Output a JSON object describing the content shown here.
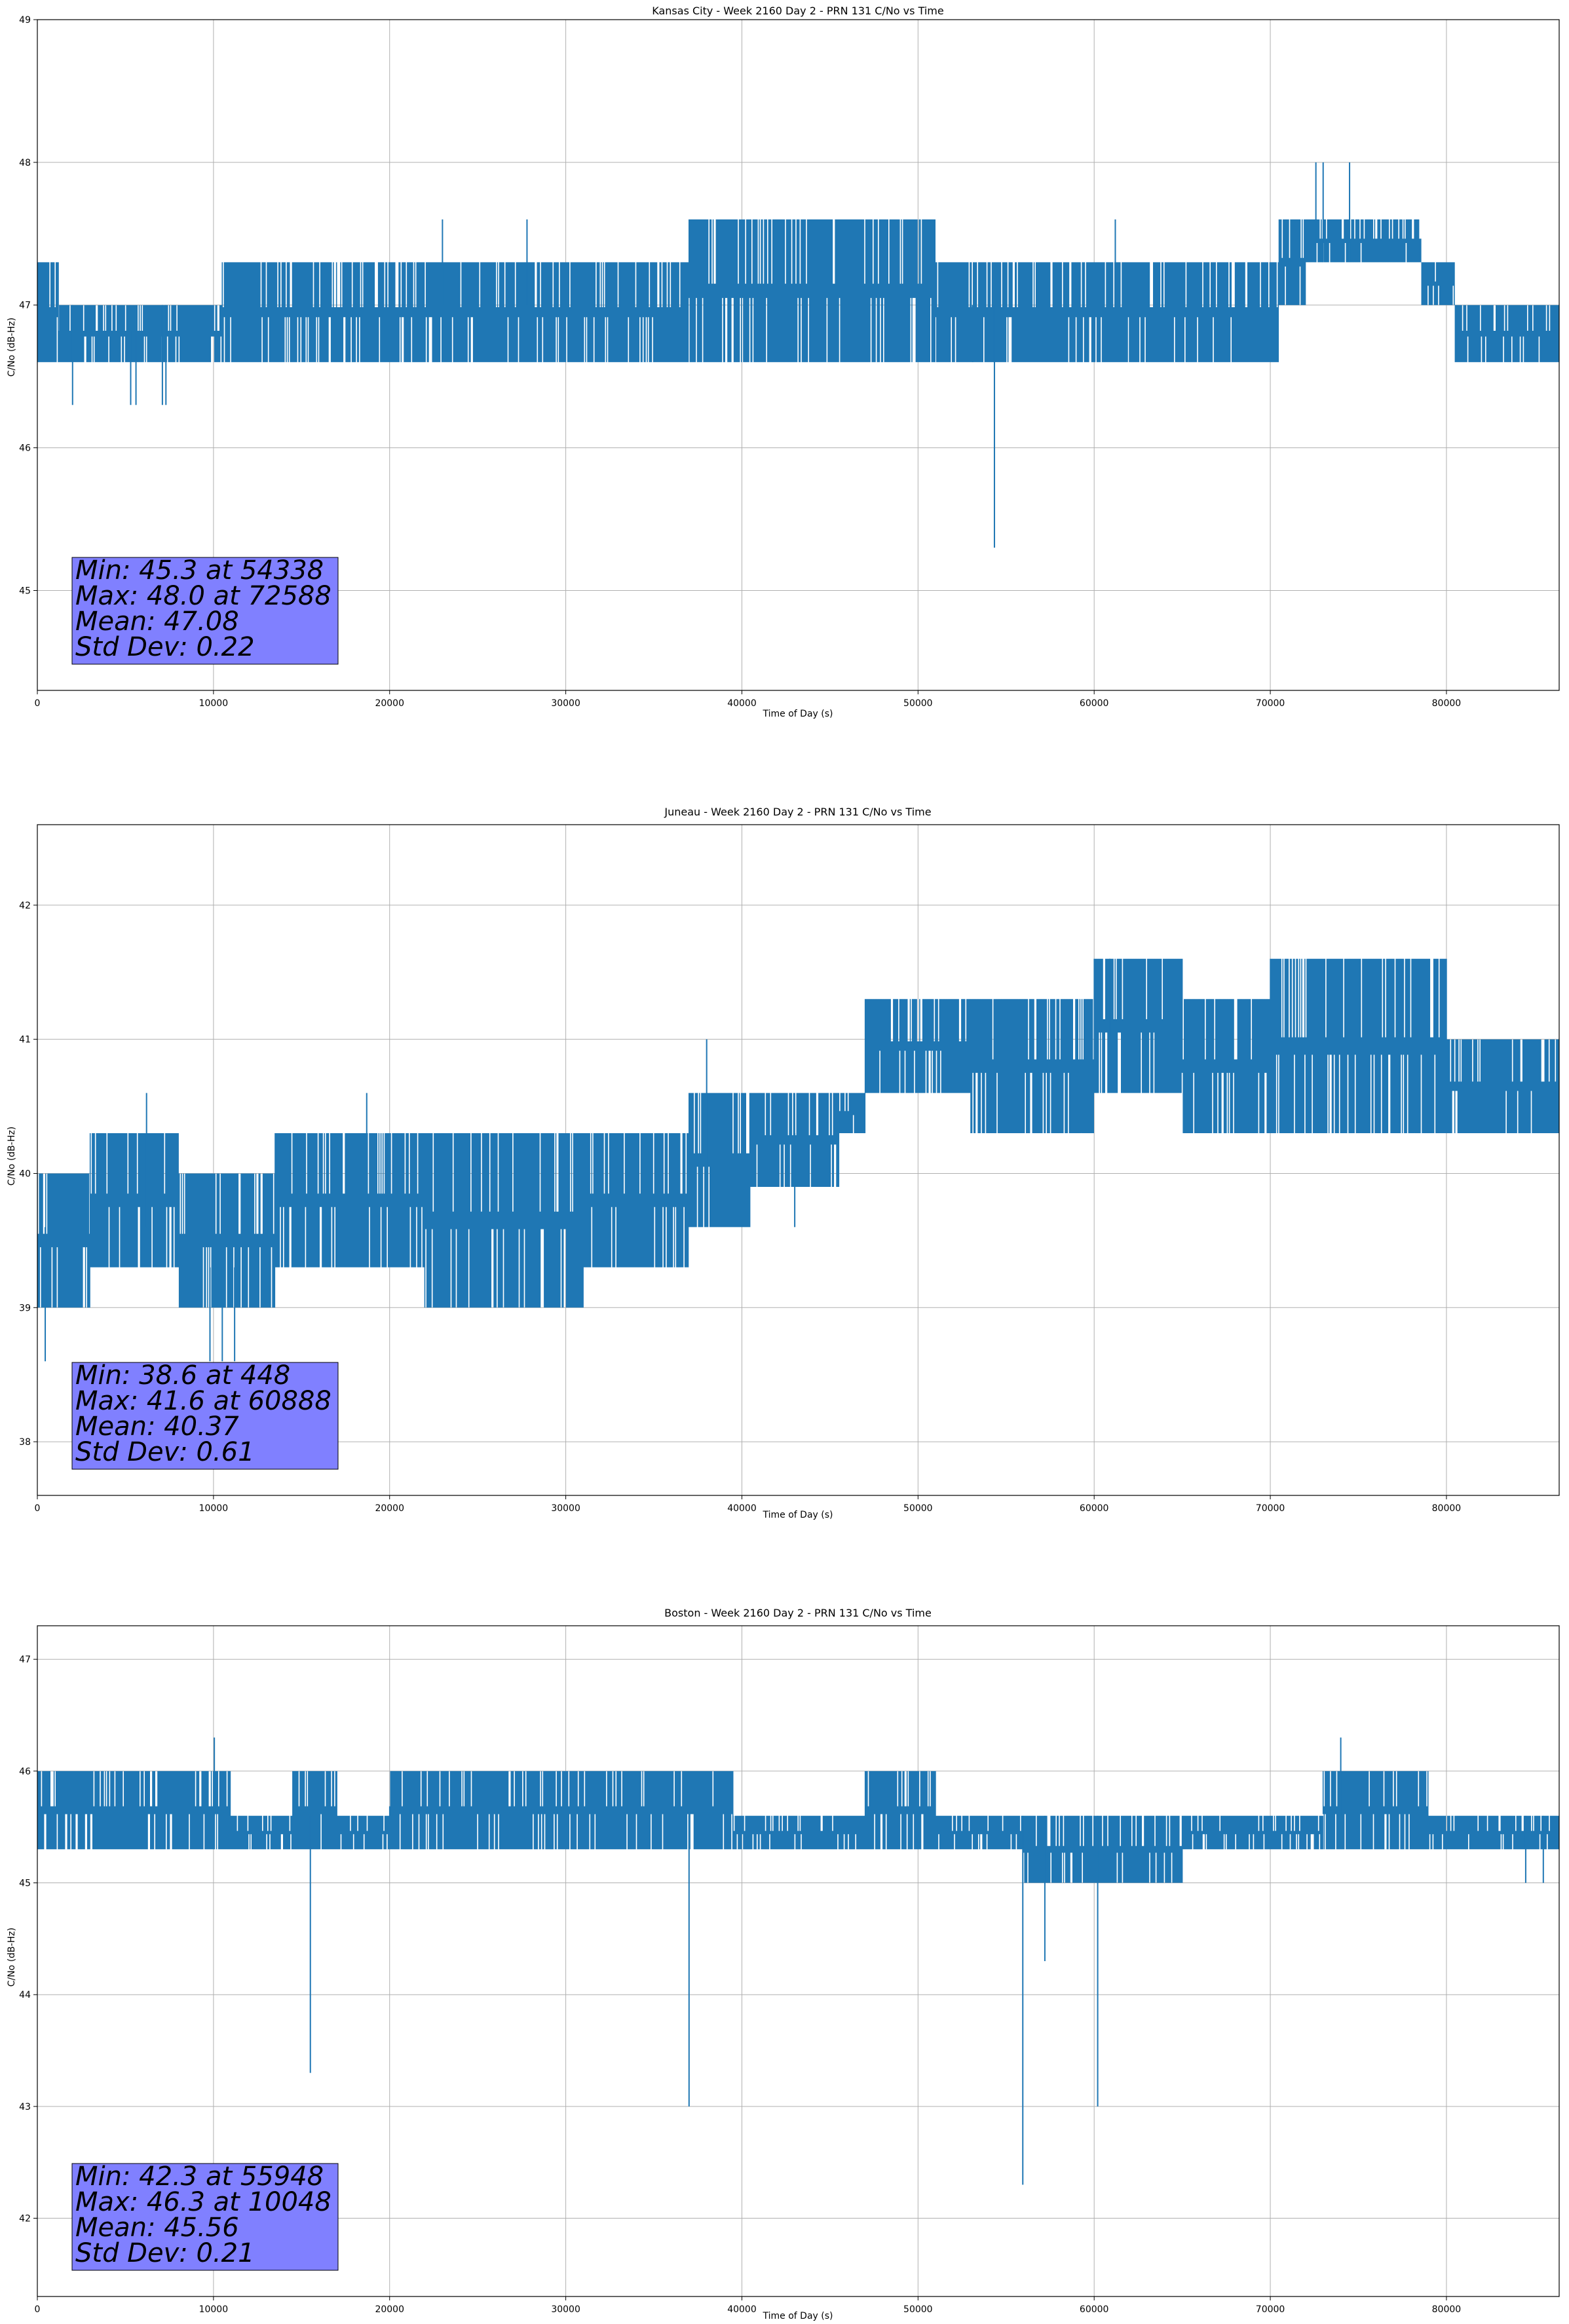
{
  "figure": {
    "background": "#ffffff",
    "line_color": "#1f77b4",
    "stats_box_color": "#8080ff",
    "grid_color": "#b0b0b0"
  },
  "chart_data": [
    {
      "type": "line",
      "title": "Kansas City - Week 2160 Day 2 - PRN 131 C/No vs Time",
      "xlabel": "Time of Day (s)",
      "ylabel": "C/No (dB-Hz)",
      "xlim": [
        0,
        86400
      ],
      "ylim": [
        44.3,
        49
      ],
      "xticks": [
        0,
        10000,
        20000,
        30000,
        40000,
        50000,
        60000,
        70000,
        80000
      ],
      "yticks": [
        45,
        46,
        47,
        48,
        49
      ],
      "grid": true,
      "stats": [
        "Min: 45.3 at 54338",
        "Max: 48.0 at 72588",
        "Mean: 47.08",
        "Std Dev: 0.22"
      ],
      "series": [
        {
          "segments": [
            {
              "x0": 0,
              "x1": 1200,
              "lo": 46.6,
              "hi": 47.3
            },
            {
              "x0": 1200,
              "x1": 10500,
              "lo": 46.6,
              "hi": 47.0
            },
            {
              "x0": 10500,
              "x1": 20000,
              "lo": 46.6,
              "hi": 47.3
            },
            {
              "x0": 20000,
              "x1": 33500,
              "lo": 46.6,
              "hi": 47.3
            },
            {
              "x0": 33500,
              "x1": 37000,
              "lo": 46.6,
              "hi": 47.3
            },
            {
              "x0": 37000,
              "x1": 44000,
              "lo": 46.6,
              "hi": 47.6
            },
            {
              "x0": 44000,
              "x1": 51000,
              "lo": 46.6,
              "hi": 47.6
            },
            {
              "x0": 51000,
              "x1": 62000,
              "lo": 46.6,
              "hi": 47.3
            },
            {
              "x0": 62000,
              "x1": 70500,
              "lo": 46.6,
              "hi": 47.3
            },
            {
              "x0": 70500,
              "x1": 72000,
              "lo": 47.0,
              "hi": 47.6
            },
            {
              "x0": 72000,
              "x1": 78600,
              "lo": 47.3,
              "hi": 47.6
            },
            {
              "x0": 78600,
              "x1": 80500,
              "lo": 47.0,
              "hi": 47.3
            },
            {
              "x0": 80500,
              "x1": 86400,
              "lo": 46.6,
              "hi": 47.0
            }
          ],
          "spikes": [
            {
              "x": 2000,
              "lo": 46.3,
              "hi": 47.0
            },
            {
              "x": 5300,
              "lo": 46.3,
              "hi": 47.0
            },
            {
              "x": 5600,
              "lo": 46.3,
              "hi": 47.0
            },
            {
              "x": 7100,
              "lo": 46.3,
              "hi": 47.0
            },
            {
              "x": 7300,
              "lo": 46.3,
              "hi": 47.0
            },
            {
              "x": 23000,
              "lo": 47.0,
              "hi": 47.6
            },
            {
              "x": 27800,
              "lo": 47.0,
              "hi": 47.6
            },
            {
              "x": 53100,
              "lo": 46.6,
              "hi": 47.0
            },
            {
              "x": 54338,
              "lo": 45.3,
              "hi": 47.0
            },
            {
              "x": 61200,
              "lo": 47.0,
              "hi": 47.6
            },
            {
              "x": 72588,
              "lo": 47.3,
              "hi": 48.0
            },
            {
              "x": 73000,
              "lo": 47.3,
              "hi": 48.0
            },
            {
              "x": 74500,
              "lo": 47.3,
              "hi": 48.0
            }
          ]
        }
      ]
    },
    {
      "type": "line",
      "title": "Juneau - Week 2160 Day 2 - PRN 131 C/No vs Time",
      "xlabel": "Time of Day (s)",
      "ylabel": "C/No (dB-Hz)",
      "xlim": [
        0,
        86400
      ],
      "ylim": [
        37.6,
        42.6
      ],
      "xticks": [
        0,
        10000,
        20000,
        30000,
        40000,
        50000,
        60000,
        70000,
        80000
      ],
      "yticks": [
        38,
        39,
        40,
        41,
        42
      ],
      "grid": true,
      "stats": [
        "Min: 38.6 at 448",
        "Max: 41.6 at 60888",
        "Mean: 40.37",
        "Std Dev: 0.61"
      ],
      "series": [
        {
          "segments": [
            {
              "x0": 0,
              "x1": 3000,
              "lo": 39.0,
              "hi": 40.0
            },
            {
              "x0": 3000,
              "x1": 8000,
              "lo": 39.3,
              "hi": 40.3
            },
            {
              "x0": 8000,
              "x1": 13500,
              "lo": 39.0,
              "hi": 40.0
            },
            {
              "x0": 13500,
              "x1": 22000,
              "lo": 39.3,
              "hi": 40.3
            },
            {
              "x0": 22000,
              "x1": 31000,
              "lo": 39.0,
              "hi": 40.3
            },
            {
              "x0": 31000,
              "x1": 37000,
              "lo": 39.3,
              "hi": 40.3
            },
            {
              "x0": 37000,
              "x1": 40500,
              "lo": 39.6,
              "hi": 40.6
            },
            {
              "x0": 40500,
              "x1": 45500,
              "lo": 39.9,
              "hi": 40.6
            },
            {
              "x0": 45500,
              "x1": 47000,
              "lo": 40.3,
              "hi": 40.6
            },
            {
              "x0": 47000,
              "x1": 53000,
              "lo": 40.6,
              "hi": 41.3
            },
            {
              "x0": 53000,
              "x1": 60000,
              "lo": 40.3,
              "hi": 41.3
            },
            {
              "x0": 60000,
              "x1": 65000,
              "lo": 40.6,
              "hi": 41.6
            },
            {
              "x0": 65000,
              "x1": 70000,
              "lo": 40.3,
              "hi": 41.3
            },
            {
              "x0": 70000,
              "x1": 80000,
              "lo": 40.3,
              "hi": 41.6
            },
            {
              "x0": 80000,
              "x1": 86400,
              "lo": 40.3,
              "hi": 41.0
            }
          ],
          "spikes": [
            {
              "x": 448,
              "lo": 38.6,
              "hi": 39.6
            },
            {
              "x": 9800,
              "lo": 38.6,
              "hi": 39.3
            },
            {
              "x": 10500,
              "lo": 38.6,
              "hi": 39.3
            },
            {
              "x": 11200,
              "lo": 38.6,
              "hi": 39.3
            },
            {
              "x": 6200,
              "lo": 39.6,
              "hi": 40.6
            },
            {
              "x": 18700,
              "lo": 39.6,
              "hi": 40.6
            },
            {
              "x": 38000,
              "lo": 40.0,
              "hi": 41.0
            },
            {
              "x": 43000,
              "lo": 39.6,
              "hi": 40.3
            },
            {
              "x": 60888,
              "lo": 41.0,
              "hi": 41.6
            }
          ]
        }
      ]
    },
    {
      "type": "line",
      "title": "Boston - Week 2160 Day 2 - PRN 131 C/No vs Time",
      "xlabel": "Time of Day (s)",
      "ylabel": "C/No (dB-Hz)",
      "xlim": [
        0,
        86400
      ],
      "ylim": [
        41.3,
        47.3
      ],
      "xticks": [
        0,
        10000,
        20000,
        30000,
        40000,
        50000,
        60000,
        70000,
        80000
      ],
      "yticks": [
        42,
        43,
        44,
        45,
        46,
        47
      ],
      "grid": true,
      "stats": [
        "Min: 42.3 at 55948",
        "Max: 46.3 at 10048",
        "Mean: 45.56",
        "Std Dev: 0.21"
      ],
      "series": [
        {
          "segments": [
            {
              "x0": 0,
              "x1": 11000,
              "lo": 45.3,
              "hi": 46.0
            },
            {
              "x0": 11000,
              "x1": 14500,
              "lo": 45.3,
              "hi": 45.6
            },
            {
              "x0": 14500,
              "x1": 17000,
              "lo": 45.3,
              "hi": 46.0
            },
            {
              "x0": 17000,
              "x1": 20000,
              "lo": 45.3,
              "hi": 45.6
            },
            {
              "x0": 20000,
              "x1": 33000,
              "lo": 45.3,
              "hi": 46.0
            },
            {
              "x0": 33000,
              "x1": 39500,
              "lo": 45.3,
              "hi": 46.0
            },
            {
              "x0": 39500,
              "x1": 47000,
              "lo": 45.3,
              "hi": 45.6
            },
            {
              "x0": 47000,
              "x1": 51000,
              "lo": 45.3,
              "hi": 46.0
            },
            {
              "x0": 51000,
              "x1": 56000,
              "lo": 45.3,
              "hi": 45.6
            },
            {
              "x0": 56000,
              "x1": 60000,
              "lo": 45.0,
              "hi": 45.6
            },
            {
              "x0": 60000,
              "x1": 65000,
              "lo": 45.0,
              "hi": 45.6
            },
            {
              "x0": 65000,
              "x1": 70000,
              "lo": 45.3,
              "hi": 45.6
            },
            {
              "x0": 70000,
              "x1": 73000,
              "lo": 45.3,
              "hi": 45.6
            },
            {
              "x0": 73000,
              "x1": 79000,
              "lo": 45.3,
              "hi": 46.0
            },
            {
              "x0": 79000,
              "x1": 86400,
              "lo": 45.3,
              "hi": 45.6
            }
          ],
          "spikes": [
            {
              "x": 10048,
              "lo": 45.6,
              "hi": 46.3
            },
            {
              "x": 15500,
              "lo": 43.3,
              "hi": 45.6
            },
            {
              "x": 37000,
              "lo": 43.0,
              "hi": 45.6
            },
            {
              "x": 55948,
              "lo": 42.3,
              "hi": 45.6
            },
            {
              "x": 57200,
              "lo": 44.3,
              "hi": 45.6
            },
            {
              "x": 60200,
              "lo": 43.0,
              "hi": 45.6
            },
            {
              "x": 74000,
              "lo": 45.6,
              "hi": 46.3
            },
            {
              "x": 84500,
              "lo": 45.0,
              "hi": 45.6
            },
            {
              "x": 85500,
              "lo": 45.0,
              "hi": 45.6
            }
          ]
        }
      ]
    }
  ]
}
